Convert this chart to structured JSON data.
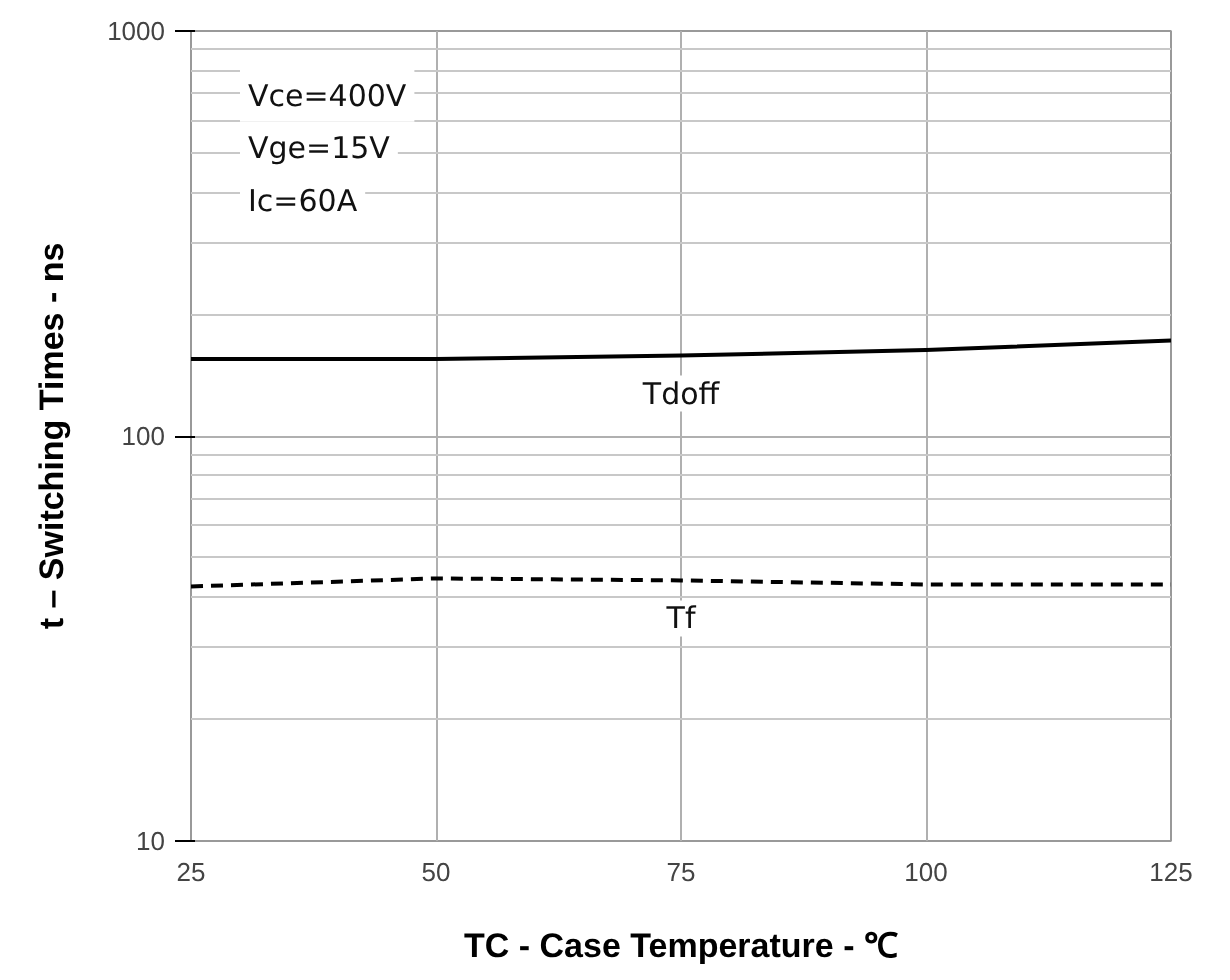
{
  "chart_data": {
    "type": "line",
    "xlabel": "TC - Case Temperature - ℃",
    "ylabel": "t – Switching Times - ns",
    "annotations": [
      "Vce=400V",
      "Vge=15V",
      "Ic=60A"
    ],
    "x": [
      25,
      50,
      75,
      100,
      125
    ],
    "series": [
      {
        "name": "Tdoff",
        "color": "#000000",
        "values": [
          155,
          155,
          158,
          163,
          172
        ],
        "line_style": "solid"
      },
      {
        "name": "Tf",
        "color": "#000000",
        "values": [
          42.5,
          44.5,
          44,
          43,
          43
        ],
        "line_style": "dashed"
      }
    ],
    "xlim": [
      25,
      125
    ],
    "xticks": [
      25,
      50,
      75,
      100,
      125
    ],
    "ylim": [
      10,
      1000
    ],
    "yticks": [
      10,
      100,
      1000
    ],
    "log": true,
    "grid": true,
    "marker": "none"
  }
}
